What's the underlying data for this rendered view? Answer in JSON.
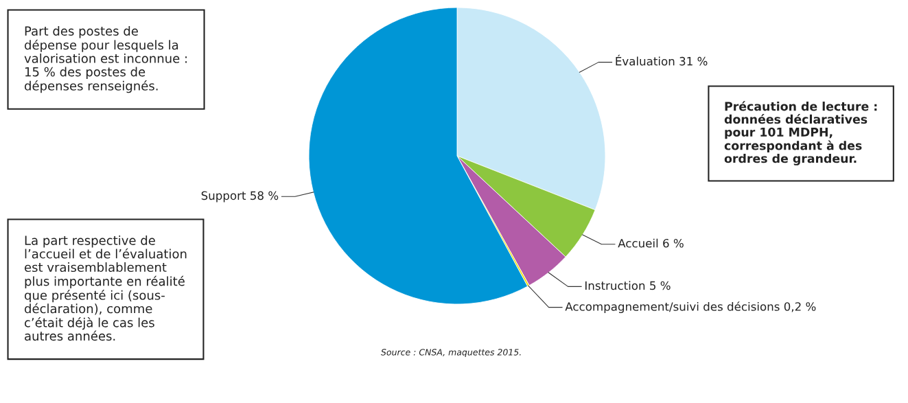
{
  "chart_data": {
    "type": "pie",
    "categories": [
      "Évaluation 31 %",
      "Accueil 6 %",
      "Instruction 5 %",
      "Accompagnement/suivi des décisions 0,2 %",
      "Support 58 %"
    ],
    "values": [
      31,
      6,
      5,
      0.2,
      58
    ],
    "colors": [
      "#c8e9f8",
      "#8dc63f",
      "#b35ca8",
      "#f0e000",
      "#0096d6"
    ],
    "annotations": [
      "Part des postes de\ndépense pour lesquels la\nvalorisation est inconnue :\n15 % des postes de\ndépenses renseignés.",
      "La part respective de\nl’accueil et de l’évaluation\nest vraisemblablement\nplus importante en réalité\nque présenté ici (sous-\ndéclaration), comme\nc’était déjà le cas les\nautres années.",
      "Précaution de lecture :\ndonnées déclaratives\npour 101 MDPH,\ncorrespondant à des\nordres de grandeur.",
      "Source : CNSA, maquettes 2015."
    ]
  }
}
